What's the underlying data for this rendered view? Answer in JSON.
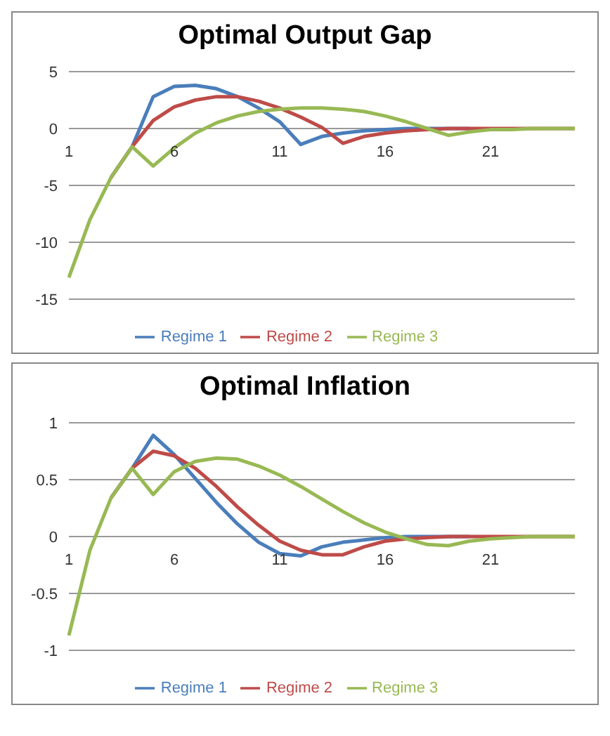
{
  "chart_data": [
    {
      "type": "line",
      "title": "Optimal Output Gap",
      "categories": [
        "1",
        null,
        null,
        null,
        null,
        "6",
        null,
        null,
        null,
        null,
        "11",
        null,
        null,
        null,
        null,
        "16",
        null,
        null,
        null,
        null,
        "21",
        null,
        null,
        null,
        null
      ],
      "series": [
        {
          "name": "Regime 1",
          "color": "#4a7ebb",
          "values": [
            null,
            null,
            -4.3,
            -1.6,
            2.8,
            3.7,
            3.8,
            3.5,
            2.8,
            1.8,
            0.6,
            -1.4,
            -0.7,
            -0.4,
            -0.2,
            -0.1,
            0,
            0,
            0,
            0,
            null,
            null,
            null,
            null,
            null
          ]
        },
        {
          "name": "Regime 2",
          "color": "#be4b48",
          "values": [
            null,
            null,
            -4.3,
            -1.6,
            0.7,
            1.9,
            2.5,
            2.8,
            2.8,
            2.4,
            1.8,
            1,
            0.1,
            -1.3,
            -0.7,
            -0.4,
            -0.2,
            -0.1,
            0,
            0,
            0,
            0,
            0,
            0,
            0
          ]
        },
        {
          "name": "Regime 3",
          "color": "#98b954",
          "values": [
            -13.1,
            -8,
            -4.3,
            -1.6,
            -3.3,
            -1.7,
            -0.4,
            0.5,
            1.1,
            1.5,
            1.7,
            1.8,
            1.8,
            1.7,
            1.5,
            1.1,
            0.6,
            0,
            -0.6,
            -0.3,
            -0.1,
            -0.1,
            0,
            0,
            0
          ]
        }
      ],
      "ylim": [
        -15,
        5
      ],
      "yticks": [
        -15,
        -10,
        -5,
        0,
        5
      ],
      "grid": "y",
      "legend": "bottom",
      "marker": "none"
    },
    {
      "type": "line",
      "title": "Optimal Inflation",
      "categories": [
        "1",
        null,
        null,
        null,
        null,
        "6",
        null,
        null,
        null,
        null,
        "11",
        null,
        null,
        null,
        null,
        "16",
        null,
        null,
        null,
        null,
        "21",
        null,
        null,
        null,
        null
      ],
      "series": [
        {
          "name": "Regime 1",
          "color": "#4a7ebb",
          "values": [
            null,
            null,
            0.34,
            0.6,
            0.89,
            0.72,
            0.51,
            0.3,
            0.11,
            -0.05,
            -0.15,
            -0.17,
            -0.09,
            -0.05,
            -0.03,
            -0.01,
            0,
            0,
            0,
            0,
            null,
            null,
            null,
            null,
            null
          ]
        },
        {
          "name": "Regime 2",
          "color": "#be4b48",
          "values": [
            null,
            null,
            0.34,
            0.6,
            0.75,
            0.71,
            0.6,
            0.44,
            0.26,
            0.1,
            -0.04,
            -0.12,
            -0.16,
            -0.16,
            -0.09,
            -0.04,
            -0.02,
            -0.01,
            0,
            0,
            0,
            0,
            0,
            0,
            0
          ]
        },
        {
          "name": "Regime 3",
          "color": "#98b954",
          "values": [
            -0.87,
            -0.12,
            0.34,
            0.6,
            0.37,
            0.57,
            0.66,
            0.69,
            0.68,
            0.62,
            0.54,
            0.44,
            0.33,
            0.22,
            0.12,
            0.04,
            -0.02,
            -0.07,
            -0.08,
            -0.04,
            -0.02,
            -0.01,
            0,
            0,
            0
          ]
        }
      ],
      "ylim": [
        -1,
        1
      ],
      "yticks": [
        -1,
        -0.5,
        0,
        0.5,
        1
      ],
      "grid": "y",
      "legend": "bottom",
      "marker": "none"
    }
  ]
}
